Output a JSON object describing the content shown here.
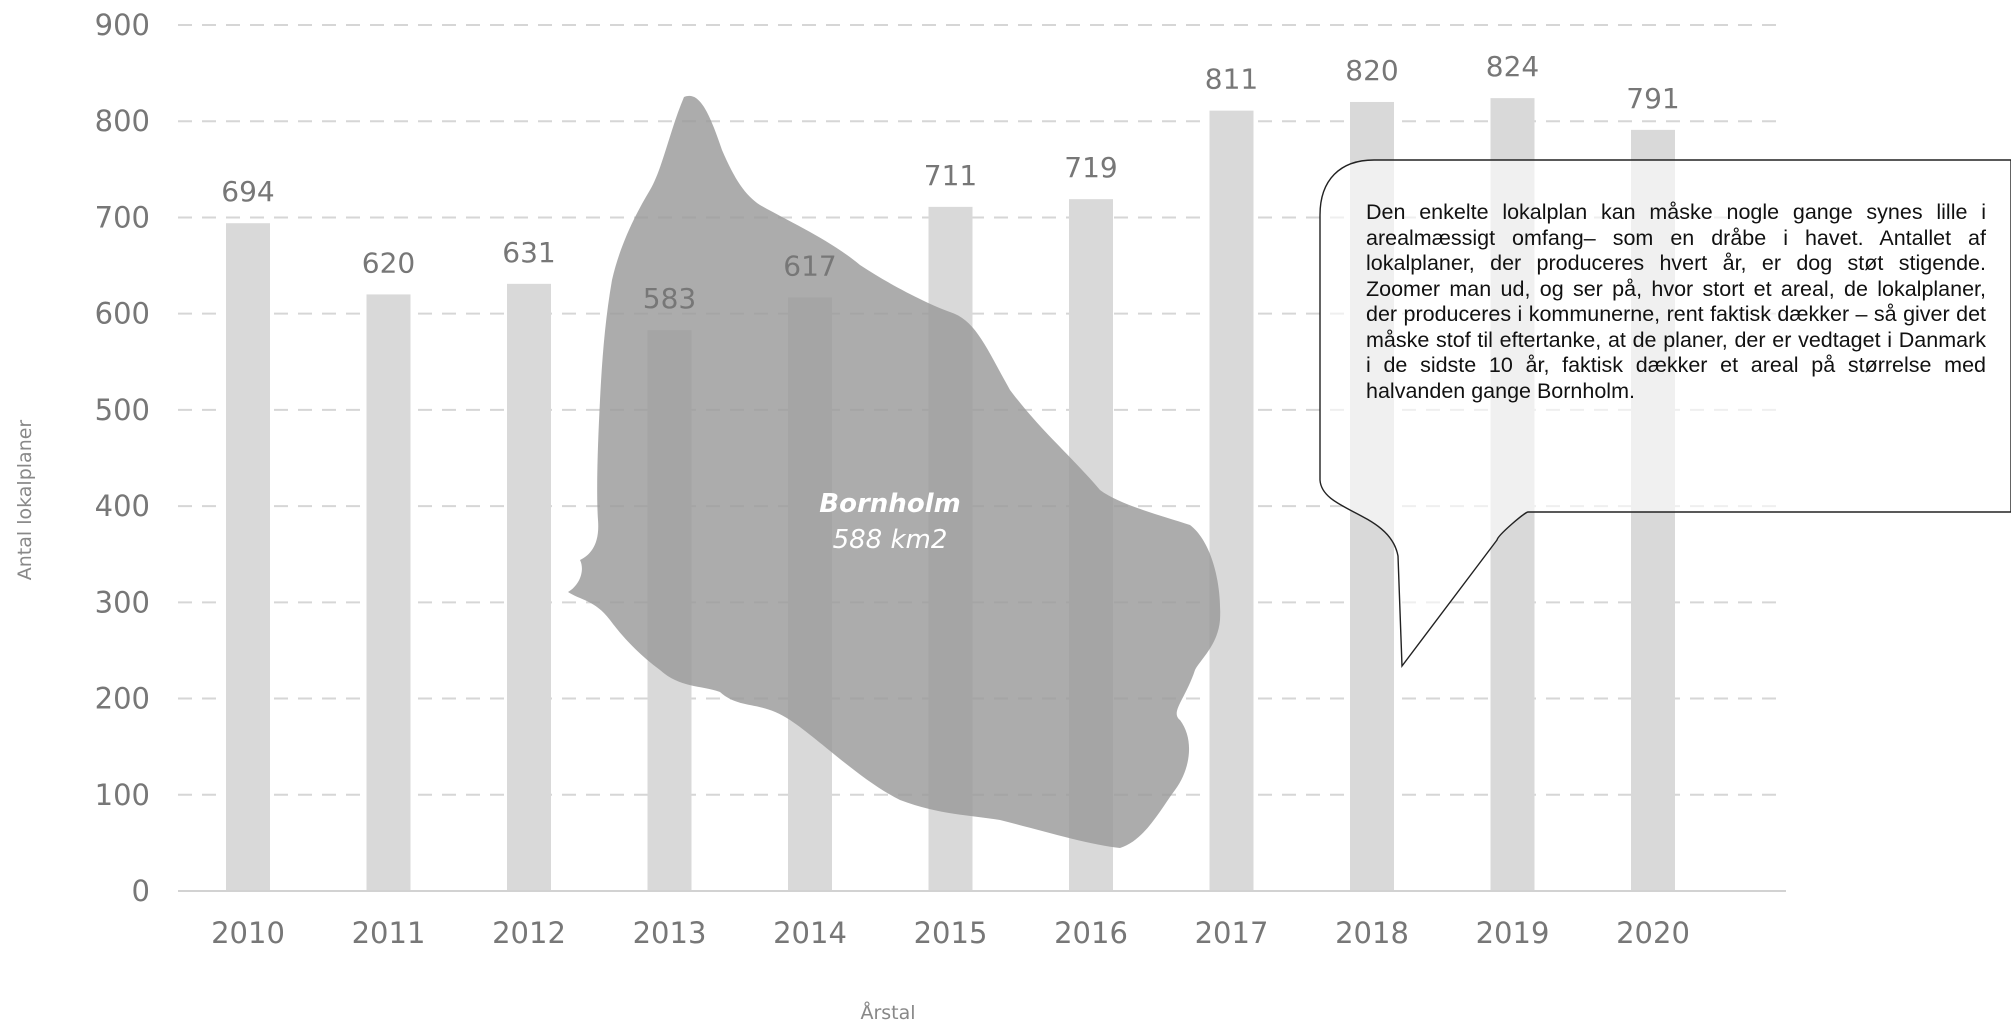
{
  "chart_data": {
    "type": "bar",
    "categories": [
      "2010",
      "2011",
      "2012",
      "2013",
      "2014",
      "2015",
      "2016",
      "2017",
      "2018",
      "2019",
      "2020"
    ],
    "values": [
      694,
      620,
      631,
      583,
      617,
      711,
      719,
      811,
      820,
      824,
      791
    ],
    "xlabel": "Årstal",
    "ylabel": "Antal lokalplaner",
    "ylim": [
      0,
      900
    ],
    "yticks": [
      0,
      100,
      200,
      300,
      400,
      500,
      600,
      700,
      800,
      900
    ],
    "grid": true,
    "bar_color": "#d9d9d9",
    "annotation": {
      "name": "Bornholm",
      "area": "588 km2",
      "color": "#9a9a9a"
    }
  },
  "callout": {
    "text": "Den enkelte lokalplan kan måske nogle gange synes lille i arealmæssigt omfang– som en dråbe i havet. Antallet af lokalplaner, der produceres hvert år, er dog støt stigende. Zoomer man ud, og ser på, hvor stort et areal, de lokalplaner, der produceres i kommunerne, rent faktisk dækker – så giver det måske stof til eftertanke, at de planer, der er vedtaget i Danmark i de sidste 10 år, faktisk dækker et areal på størrelse med halvanden gange Bornholm."
  }
}
